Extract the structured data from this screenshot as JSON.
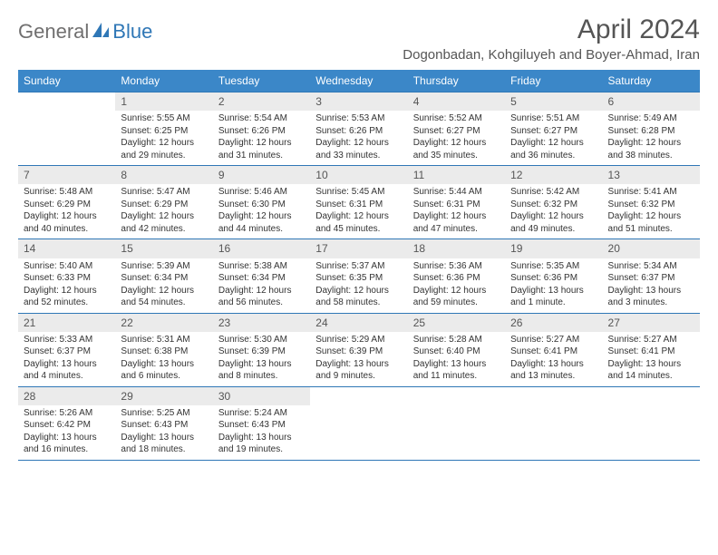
{
  "logo": {
    "text1": "General",
    "text2": "Blue"
  },
  "title": "April 2024",
  "location": "Dogonbadan, Kohgiluyeh and Boyer-Ahmad, Iran",
  "colors": {
    "header_bg": "#3b87c8",
    "rule": "#2f77b6",
    "daynum_bg": "#ebebeb",
    "title_color": "#555555",
    "text_color": "#333333",
    "logo_gray": "#706f6f",
    "logo_blue": "#2f77b6",
    "background": "#ffffff"
  },
  "fonts": {
    "title_size": 30,
    "location_size": 15,
    "header_size": 12,
    "daynum_size": 12,
    "body_size": 10
  },
  "day_names": [
    "Sunday",
    "Monday",
    "Tuesday",
    "Wednesday",
    "Thursday",
    "Friday",
    "Saturday"
  ],
  "weeks": [
    [
      {
        "n": "",
        "sr": "",
        "ss": "",
        "dl": ""
      },
      {
        "n": "1",
        "sr": "Sunrise: 5:55 AM",
        "ss": "Sunset: 6:25 PM",
        "dl": "Daylight: 12 hours and 29 minutes."
      },
      {
        "n": "2",
        "sr": "Sunrise: 5:54 AM",
        "ss": "Sunset: 6:26 PM",
        "dl": "Daylight: 12 hours and 31 minutes."
      },
      {
        "n": "3",
        "sr": "Sunrise: 5:53 AM",
        "ss": "Sunset: 6:26 PM",
        "dl": "Daylight: 12 hours and 33 minutes."
      },
      {
        "n": "4",
        "sr": "Sunrise: 5:52 AM",
        "ss": "Sunset: 6:27 PM",
        "dl": "Daylight: 12 hours and 35 minutes."
      },
      {
        "n": "5",
        "sr": "Sunrise: 5:51 AM",
        "ss": "Sunset: 6:27 PM",
        "dl": "Daylight: 12 hours and 36 minutes."
      },
      {
        "n": "6",
        "sr": "Sunrise: 5:49 AM",
        "ss": "Sunset: 6:28 PM",
        "dl": "Daylight: 12 hours and 38 minutes."
      }
    ],
    [
      {
        "n": "7",
        "sr": "Sunrise: 5:48 AM",
        "ss": "Sunset: 6:29 PM",
        "dl": "Daylight: 12 hours and 40 minutes."
      },
      {
        "n": "8",
        "sr": "Sunrise: 5:47 AM",
        "ss": "Sunset: 6:29 PM",
        "dl": "Daylight: 12 hours and 42 minutes."
      },
      {
        "n": "9",
        "sr": "Sunrise: 5:46 AM",
        "ss": "Sunset: 6:30 PM",
        "dl": "Daylight: 12 hours and 44 minutes."
      },
      {
        "n": "10",
        "sr": "Sunrise: 5:45 AM",
        "ss": "Sunset: 6:31 PM",
        "dl": "Daylight: 12 hours and 45 minutes."
      },
      {
        "n": "11",
        "sr": "Sunrise: 5:44 AM",
        "ss": "Sunset: 6:31 PM",
        "dl": "Daylight: 12 hours and 47 minutes."
      },
      {
        "n": "12",
        "sr": "Sunrise: 5:42 AM",
        "ss": "Sunset: 6:32 PM",
        "dl": "Daylight: 12 hours and 49 minutes."
      },
      {
        "n": "13",
        "sr": "Sunrise: 5:41 AM",
        "ss": "Sunset: 6:32 PM",
        "dl": "Daylight: 12 hours and 51 minutes."
      }
    ],
    [
      {
        "n": "14",
        "sr": "Sunrise: 5:40 AM",
        "ss": "Sunset: 6:33 PM",
        "dl": "Daylight: 12 hours and 52 minutes."
      },
      {
        "n": "15",
        "sr": "Sunrise: 5:39 AM",
        "ss": "Sunset: 6:34 PM",
        "dl": "Daylight: 12 hours and 54 minutes."
      },
      {
        "n": "16",
        "sr": "Sunrise: 5:38 AM",
        "ss": "Sunset: 6:34 PM",
        "dl": "Daylight: 12 hours and 56 minutes."
      },
      {
        "n": "17",
        "sr": "Sunrise: 5:37 AM",
        "ss": "Sunset: 6:35 PM",
        "dl": "Daylight: 12 hours and 58 minutes."
      },
      {
        "n": "18",
        "sr": "Sunrise: 5:36 AM",
        "ss": "Sunset: 6:36 PM",
        "dl": "Daylight: 12 hours and 59 minutes."
      },
      {
        "n": "19",
        "sr": "Sunrise: 5:35 AM",
        "ss": "Sunset: 6:36 PM",
        "dl": "Daylight: 13 hours and 1 minute."
      },
      {
        "n": "20",
        "sr": "Sunrise: 5:34 AM",
        "ss": "Sunset: 6:37 PM",
        "dl": "Daylight: 13 hours and 3 minutes."
      }
    ],
    [
      {
        "n": "21",
        "sr": "Sunrise: 5:33 AM",
        "ss": "Sunset: 6:37 PM",
        "dl": "Daylight: 13 hours and 4 minutes."
      },
      {
        "n": "22",
        "sr": "Sunrise: 5:31 AM",
        "ss": "Sunset: 6:38 PM",
        "dl": "Daylight: 13 hours and 6 minutes."
      },
      {
        "n": "23",
        "sr": "Sunrise: 5:30 AM",
        "ss": "Sunset: 6:39 PM",
        "dl": "Daylight: 13 hours and 8 minutes."
      },
      {
        "n": "24",
        "sr": "Sunrise: 5:29 AM",
        "ss": "Sunset: 6:39 PM",
        "dl": "Daylight: 13 hours and 9 minutes."
      },
      {
        "n": "25",
        "sr": "Sunrise: 5:28 AM",
        "ss": "Sunset: 6:40 PM",
        "dl": "Daylight: 13 hours and 11 minutes."
      },
      {
        "n": "26",
        "sr": "Sunrise: 5:27 AM",
        "ss": "Sunset: 6:41 PM",
        "dl": "Daylight: 13 hours and 13 minutes."
      },
      {
        "n": "27",
        "sr": "Sunrise: 5:27 AM",
        "ss": "Sunset: 6:41 PM",
        "dl": "Daylight: 13 hours and 14 minutes."
      }
    ],
    [
      {
        "n": "28",
        "sr": "Sunrise: 5:26 AM",
        "ss": "Sunset: 6:42 PM",
        "dl": "Daylight: 13 hours and 16 minutes."
      },
      {
        "n": "29",
        "sr": "Sunrise: 5:25 AM",
        "ss": "Sunset: 6:43 PM",
        "dl": "Daylight: 13 hours and 18 minutes."
      },
      {
        "n": "30",
        "sr": "Sunrise: 5:24 AM",
        "ss": "Sunset: 6:43 PM",
        "dl": "Daylight: 13 hours and 19 minutes."
      },
      {
        "n": "",
        "sr": "",
        "ss": "",
        "dl": ""
      },
      {
        "n": "",
        "sr": "",
        "ss": "",
        "dl": ""
      },
      {
        "n": "",
        "sr": "",
        "ss": "",
        "dl": ""
      },
      {
        "n": "",
        "sr": "",
        "ss": "",
        "dl": ""
      }
    ]
  ]
}
